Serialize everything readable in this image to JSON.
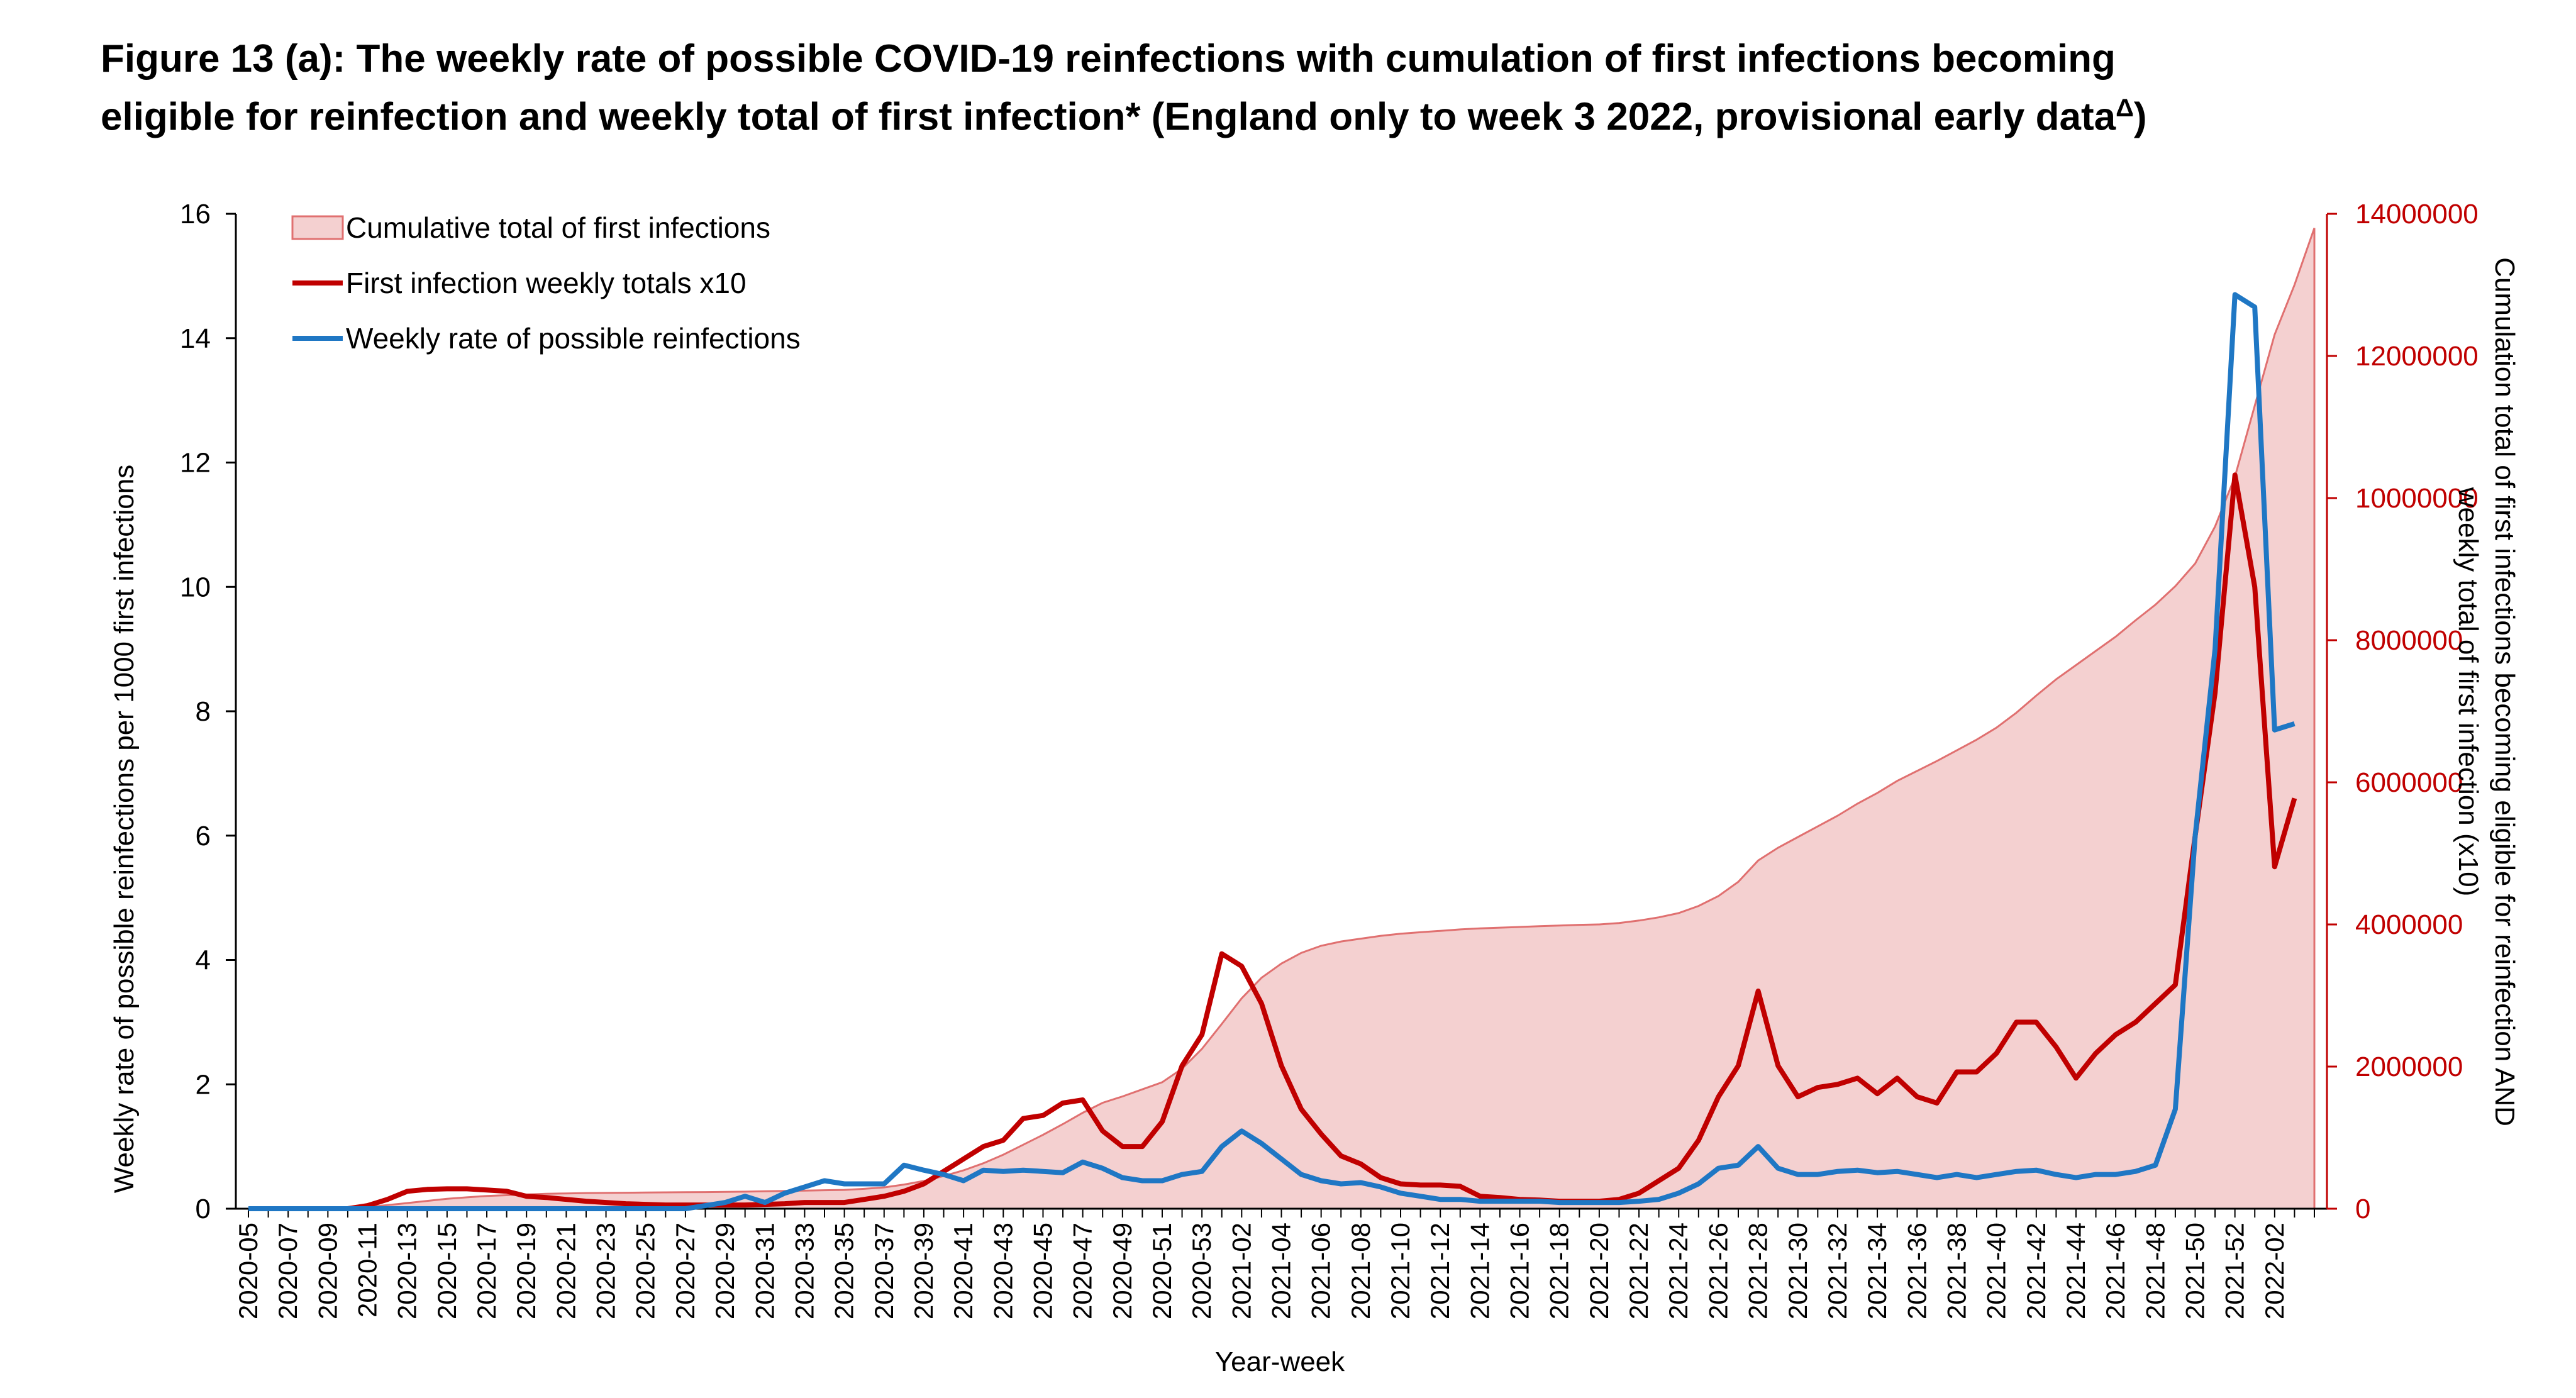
{
  "title": {
    "line1": "Figure 13 (a): The weekly rate of possible COVID-19 reinfections with cumulation of first infections becoming",
    "line2": "eligible for reinfection and weekly total of first infection* (England only to week 3 2022, provisional early data",
    "sup": "Δ",
    "close": ")"
  },
  "chart_data": {
    "type": "line",
    "xlabel": "Year-week",
    "ylabel": "Weekly rate of  possible  reinfections per 1000 first infections",
    "y2label_line1": "Cumulation total  of first infections becoming eligible for reinfection AND",
    "y2label_line2": "weekly total of first infection (x10)",
    "ylim": [
      0,
      16
    ],
    "y2lim": [
      0,
      14000000
    ],
    "yticks": [
      "0",
      "2",
      "4",
      "6",
      "8",
      "10",
      "12",
      "14",
      "16"
    ],
    "y2ticks": [
      "0",
      "2000000",
      "4000000",
      "6000000",
      "8000000",
      "10000000",
      "12000000",
      "14000000"
    ],
    "xtick_labels": [
      "2020-05",
      "2020-07",
      "2020-09",
      "2020-11",
      "2020-13",
      "2020-15",
      "2020-17",
      "2020-19",
      "2020-21",
      "2020-23",
      "2020-25",
      "2020-27",
      "2020-29",
      "2020-31",
      "2020-33",
      "2020-35",
      "2020-37",
      "2020-39",
      "2020-41",
      "2020-43",
      "2020-45",
      "2020-47",
      "2020-49",
      "2020-51",
      "2020-53",
      "2021-02",
      "2021-04",
      "2021-06",
      "2021-08",
      "2021-10",
      "2021-12",
      "2021-14",
      "2021-16",
      "2021-18",
      "2021-20",
      "2021-22",
      "2021-24",
      "2021-26",
      "2021-28",
      "2021-30",
      "2021-32",
      "2021-34",
      "2021-36",
      "2021-38",
      "2021-40",
      "2021-42",
      "2021-44",
      "2021-46",
      "2021-48",
      "2021-50",
      "2021-52",
      "2022-02"
    ],
    "legend_position": "top-left",
    "series": [
      {
        "name": "Cumulative total of first infections",
        "kind": "area",
        "axis": "right",
        "fill": "#f4d0d0",
        "stroke": "#e07070",
        "values": [
          0,
          0,
          0,
          0,
          0,
          0,
          25000,
          50000,
          80000,
          110000,
          140000,
          160000,
          180000,
          190000,
          200000,
          210000,
          215000,
          220000,
          222000,
          225000,
          228000,
          230000,
          232000,
          234000,
          236000,
          240000,
          245000,
          250000,
          255000,
          260000,
          265000,
          280000,
          300000,
          340000,
          390000,
          460000,
          540000,
          640000,
          760000,
          900000,
          1040000,
          1190000,
          1350000,
          1490000,
          1580000,
          1680000,
          1780000,
          1970000,
          2250000,
          2600000,
          2960000,
          3250000,
          3450000,
          3600000,
          3700000,
          3760000,
          3800000,
          3840000,
          3870000,
          3890000,
          3910000,
          3930000,
          3945000,
          3955000,
          3965000,
          3975000,
          3985000,
          3995000,
          4000000,
          4020000,
          4055000,
          4100000,
          4160000,
          4260000,
          4400000,
          4600000,
          4900000,
          5080000,
          5230000,
          5380000,
          5530000,
          5700000,
          5850000,
          6020000,
          6160000,
          6300000,
          6450000,
          6600000,
          6770000,
          6980000,
          7220000,
          7450000,
          7650000,
          7850000,
          8050000,
          8280000,
          8500000,
          8760000,
          9080000,
          9600000,
          10300000,
          11300000,
          12300000,
          13000000,
          13800000
        ]
      },
      {
        "name": "First infection weekly totals x10",
        "kind": "line",
        "axis": "left",
        "color": "#c00000",
        "values": [
          0,
          0,
          0,
          0,
          0,
          0,
          0.05,
          0.15,
          0.28,
          0.31,
          0.32,
          0.32,
          0.3,
          0.28,
          0.2,
          0.18,
          0.15,
          0.12,
          0.1,
          0.08,
          0.07,
          0.06,
          0.06,
          0.06,
          0.06,
          0.06,
          0.07,
          0.08,
          0.1,
          0.1,
          0.1,
          0.15,
          0.2,
          0.28,
          0.4,
          0.6,
          0.8,
          1.0,
          1.1,
          1.45,
          1.5,
          1.7,
          1.75,
          1.25,
          1.0,
          1.0,
          1.4,
          2.3,
          2.8,
          4.1,
          3.9,
          3.3,
          2.3,
          1.6,
          1.2,
          0.85,
          0.72,
          0.5,
          0.4,
          0.38,
          0.38,
          0.36,
          0.2,
          0.18,
          0.15,
          0.14,
          0.12,
          0.12,
          0.12,
          0.15,
          0.25,
          0.45,
          0.65,
          1.1,
          1.8,
          2.3,
          3.5,
          2.3,
          1.8,
          1.95,
          2.0,
          2.1,
          1.85,
          2.1,
          1.8,
          1.7,
          2.2,
          2.2,
          2.5,
          3.0,
          3.0,
          2.6,
          2.1,
          2.5,
          2.8,
          3.0,
          3.3,
          3.6,
          6.0,
          8.3,
          11.8,
          10.0,
          5.5,
          6.6
        ]
      },
      {
        "name": "Weekly rate of possible reinfections",
        "kind": "line",
        "axis": "left",
        "color": "#1f77c4",
        "values": [
          0,
          0,
          0,
          0,
          0,
          0,
          0,
          0,
          0,
          0,
          0,
          0,
          0,
          0,
          0,
          0,
          0,
          0,
          0,
          0,
          0,
          0,
          0,
          0.05,
          0.1,
          0.2,
          0.1,
          0.25,
          0.35,
          0.45,
          0.4,
          0.4,
          0.4,
          0.7,
          0.62,
          0.55,
          0.45,
          0.62,
          0.6,
          0.62,
          0.6,
          0.58,
          0.75,
          0.65,
          0.5,
          0.45,
          0.45,
          0.55,
          0.6,
          1.0,
          1.25,
          1.05,
          0.8,
          0.55,
          0.45,
          0.4,
          0.42,
          0.35,
          0.25,
          0.2,
          0.15,
          0.15,
          0.12,
          0.12,
          0.12,
          0.12,
          0.1,
          0.1,
          0.1,
          0.1,
          0.12,
          0.15,
          0.25,
          0.4,
          0.65,
          0.7,
          1.0,
          0.65,
          0.55,
          0.55,
          0.6,
          0.62,
          0.58,
          0.6,
          0.55,
          0.5,
          0.55,
          0.5,
          0.55,
          0.6,
          0.62,
          0.55,
          0.5,
          0.55,
          0.55,
          0.6,
          0.7,
          1.6,
          6.0,
          9.0,
          14.7,
          14.5,
          7.7,
          7.8
        ]
      }
    ]
  }
}
